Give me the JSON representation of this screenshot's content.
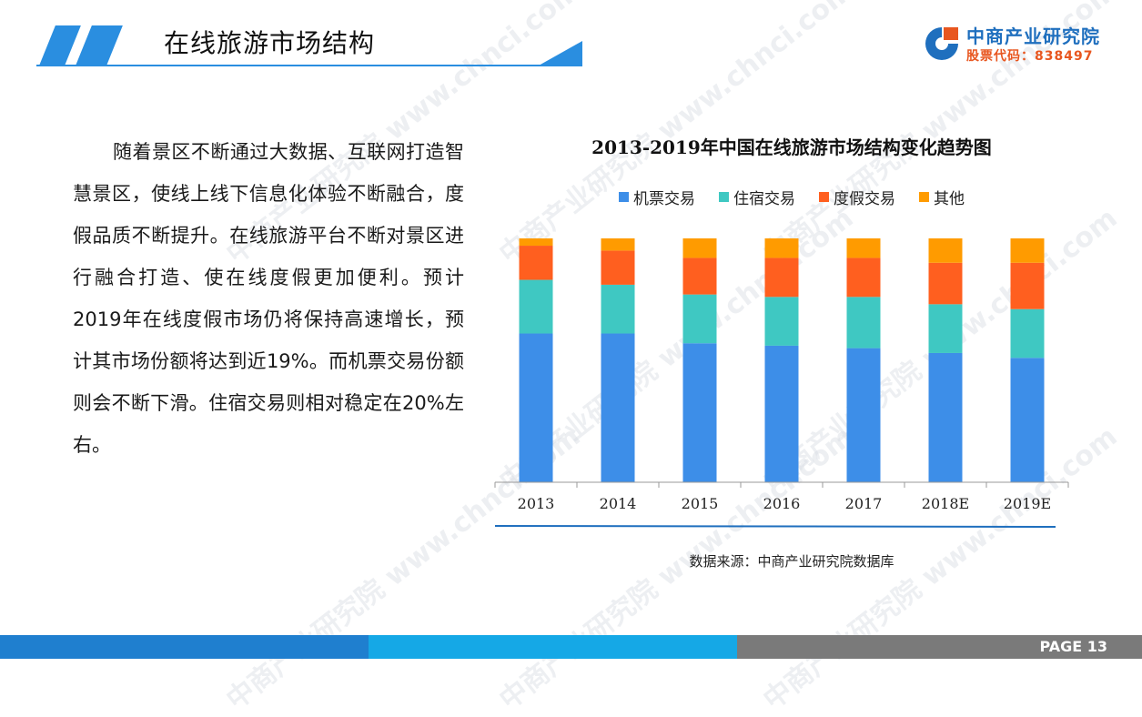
{
  "header": {
    "title": "在线旅游市场结构"
  },
  "logo": {
    "name": "中商产业研究院",
    "stock": "股票代码：838497",
    "colors": {
      "blue": "#1f6fbe",
      "orange": "#e8561f"
    }
  },
  "body_text": "随着景区不断通过大数据、互联网打造智慧景区，使线上线下信息化体验不断融合，度假品质不断提升。在线旅游平台不断对景区进行融合打造、使在线度假更加便利。预计2019年在线度假市场仍将保持高速增长，预计其市场份额将达到近19%。而机票交易份额则会不断下滑。住宿交易则相对稳定在20%左右。",
  "chart": {
    "title": "2013-2019年中国在线旅游市场结构变化趋势图",
    "source": "数据来源：中商产业研究院数据库"
  },
  "chart_data": {
    "type": "bar",
    "stacked": true,
    "normalized": true,
    "categories": [
      "2013",
      "2014",
      "2015",
      "2016",
      "2017",
      "2018E",
      "2019E"
    ],
    "series": [
      {
        "name": "机票交易",
        "color": "#3d8ee8",
        "values": [
          61,
          61,
          57,
          56,
          55,
          53,
          51
        ]
      },
      {
        "name": "住宿交易",
        "color": "#3fc8c2",
        "values": [
          22,
          20,
          20,
          20,
          21,
          20,
          20
        ]
      },
      {
        "name": "度假交易",
        "color": "#ff5f1f",
        "values": [
          14,
          14,
          15,
          16,
          16,
          17,
          19
        ]
      },
      {
        "name": "其他",
        "color": "#ff9b00",
        "values": [
          3,
          5,
          8,
          8,
          8,
          10,
          10
        ]
      }
    ],
    "ylim": [
      0,
      100
    ],
    "legend": "top",
    "grid": false
  },
  "footer": {
    "page": "PAGE  13"
  },
  "watermark": {
    "text": "中商产业研究院 www.chnci.com"
  }
}
